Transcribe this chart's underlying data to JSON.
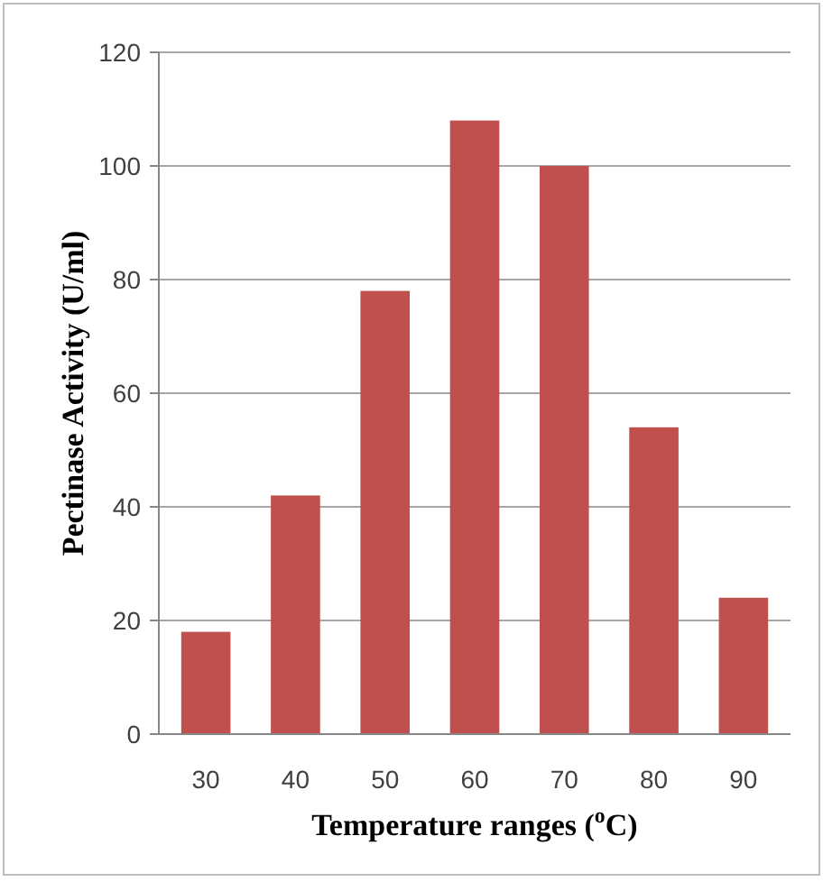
{
  "chart_data": {
    "type": "bar",
    "xlabel": "Temperature ranges ($^{o}$C)",
    "ylabel": "Pectinase Activity (U/ml)",
    "categories": [
      "30",
      "40",
      "50",
      "60",
      "70",
      "80",
      "90"
    ],
    "values": [
      18,
      42,
      78,
      108,
      100,
      54,
      24
    ],
    "color": "#c0504d",
    "ylim": [
      0,
      120
    ],
    "yticks": [
      0,
      20,
      40,
      60,
      80,
      100,
      120
    ],
    "grid": "y"
  }
}
